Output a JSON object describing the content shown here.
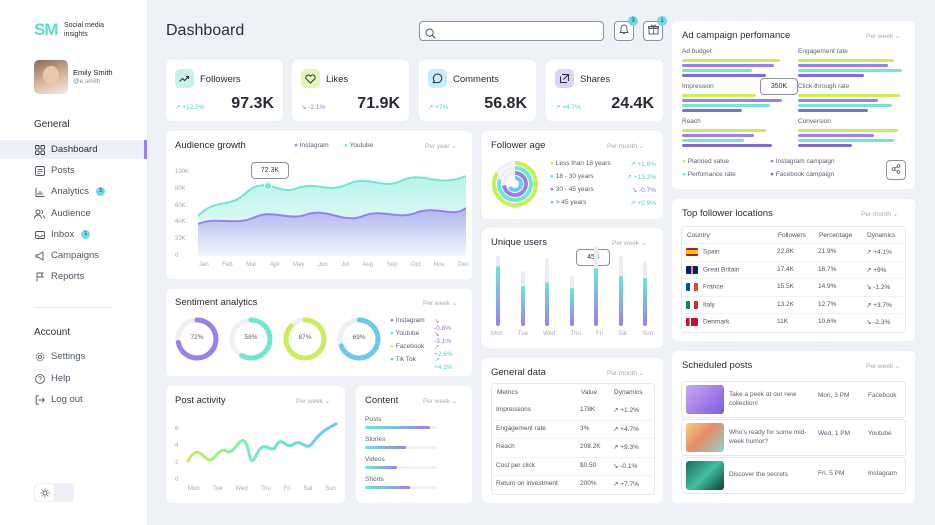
{
  "brand": {
    "mark": "SM",
    "name": "Social media insights"
  },
  "user": {
    "name": "Emily Smith",
    "handle": "@e.smith"
  },
  "nav": {
    "general_title": "General",
    "items": [
      {
        "label": "Dashboard",
        "icon": "grid-icon",
        "active": true
      },
      {
        "label": "Posts",
        "icon": "posts-icon"
      },
      {
        "label": "Analytics",
        "icon": "analytics-icon",
        "badge": "3"
      },
      {
        "label": "Audience",
        "icon": "audience-icon"
      },
      {
        "label": "Inbox",
        "icon": "inbox-icon",
        "badge": "1"
      },
      {
        "label": "Campaigns",
        "icon": "campaigns-icon"
      },
      {
        "label": "Reports",
        "icon": "reports-icon"
      }
    ],
    "account_title": "Account",
    "account_items": [
      {
        "label": "Settings",
        "icon": "gear-icon"
      },
      {
        "label": "Help",
        "icon": "help-icon"
      },
      {
        "label": "Log out",
        "icon": "logout-icon"
      }
    ]
  },
  "header": {
    "title": "Dashboard",
    "search_placeholder": "",
    "notif_badge": "3",
    "gift_badge": "1"
  },
  "stats": [
    {
      "label": "Followers",
      "value": "97.3K",
      "change": "+12.5%",
      "dir": "up",
      "color": "#c7f2e8",
      "icon": "followers-icon"
    },
    {
      "label": "Likes",
      "value": "71.9K",
      "change": "-2.1%",
      "dir": "down",
      "color": "#e5f5b9",
      "icon": "heart-icon"
    },
    {
      "label": "Comments",
      "value": "56.8K",
      "change": "+7%",
      "dir": "up",
      "color": "#c6ecf7",
      "icon": "comment-icon"
    },
    {
      "label": "Shares",
      "value": "24.4K",
      "change": "+4.7%",
      "dir": "up",
      "color": "#dcd4fb",
      "icon": "share-icon"
    }
  ],
  "audience": {
    "title": "Audience growth",
    "period": "Per year",
    "legend": [
      "Instagram",
      "Youtube"
    ],
    "tooltip": "72.3K",
    "yticks": [
      "100K",
      "80K",
      "60K",
      "40K",
      "20K",
      "0"
    ],
    "months": [
      "Jan",
      "Feb",
      "Mar",
      "Apr",
      "May",
      "Jun",
      "Jul",
      "Aug",
      "Sep",
      "Oct",
      "Nov",
      "Dec"
    ]
  },
  "sentiment": {
    "title": "Sentiment analytics",
    "period": "Per week",
    "rings": [
      {
        "value": "72%",
        "pct": 72,
        "color": "#9a7ff0"
      },
      {
        "value": "58%",
        "pct": 58,
        "color": "#6ee7d3"
      },
      {
        "value": "87%",
        "pct": 87,
        "color": "#c7ef5a"
      },
      {
        "value": "69%",
        "pct": 69,
        "color": "#6cc9ee"
      }
    ],
    "legend": [
      {
        "label": "Instagram",
        "change": "-0.8%",
        "dir": "down",
        "color": "#9a7ff0"
      },
      {
        "label": "Youtube",
        "change": "-3.1%",
        "dir": "down",
        "color": "#6ee7d3"
      },
      {
        "label": "Facebook",
        "change": "+2.6%",
        "dir": "up",
        "color": "#c7ef5a"
      },
      {
        "label": "Tik Tok",
        "change": "+4.3%",
        "dir": "up",
        "color": "#6cc9ee"
      }
    ]
  },
  "post_activity": {
    "title": "Post activity",
    "period": "Per week",
    "yticks": [
      "6",
      "4",
      "2",
      "0"
    ],
    "days": [
      "Mon",
      "Tue",
      "Wed",
      "Thu",
      "Fri",
      "Sat",
      "Sun"
    ]
  },
  "content": {
    "title": "Content",
    "period": "Per week",
    "items": [
      {
        "label": "Posts",
        "pct": 0.9
      },
      {
        "label": "Stories",
        "pct": 0.57
      },
      {
        "label": "Videos",
        "pct": 0.44
      },
      {
        "label": "Shorts",
        "pct": 0.62
      }
    ]
  },
  "follower_age": {
    "title": "Follower age",
    "period": "Per month",
    "rows": [
      {
        "label": "Less than 18 years",
        "change": "+1.6%",
        "dir": "up",
        "color": "#c7ef5a"
      },
      {
        "label": "18 - 30 years",
        "change": "+13.2%",
        "dir": "up",
        "color": "#6ee7d3"
      },
      {
        "label": "30 - 45 years",
        "change": "-0.7%",
        "dir": "down",
        "color": "#9a7ff0"
      },
      {
        "label": "> 45 years",
        "change": "+0.9%",
        "dir": "up",
        "color": "#6cc9ee"
      }
    ]
  },
  "unique_users": {
    "title": "Unique users",
    "period": "Per week",
    "tooltip": "458",
    "days": [
      "Mon",
      "Tue",
      "Wed",
      "Thu",
      "Fri",
      "Sat",
      "Sun"
    ]
  },
  "general_data": {
    "title": "General data",
    "period": "Per month",
    "headers": [
      "Metrics",
      "Value",
      "Dynamics"
    ],
    "rows": [
      {
        "metric": "Impressions",
        "value": "178K",
        "change": "+1.2%",
        "dir": "up"
      },
      {
        "metric": "Engagement rate",
        "value": "3%",
        "change": "+4.7%",
        "dir": "up"
      },
      {
        "metric": "Reach",
        "value": "208.2K",
        "change": "+9.3%",
        "dir": "up"
      },
      {
        "metric": "Cost per click",
        "value": "$0.50",
        "change": "-0.1%",
        "dir": "down"
      },
      {
        "metric": "Return on investment",
        "value": "200%",
        "change": "+7.7%",
        "dir": "up"
      }
    ]
  },
  "ad_campaign": {
    "title": "Ad campaign perfomance",
    "period": "Per week",
    "metrics": [
      "Ad budget",
      "Engagement rate",
      "Impression",
      "Click-through rate",
      "Reach",
      "Conversion"
    ],
    "tooltip": "350K",
    "legend": [
      "Planned value",
      "Instagram campaign",
      "Perfomance rate",
      "Facebook campaign"
    ]
  },
  "locations": {
    "title": "Top follower locations",
    "period": "Per month",
    "headers": [
      "Country",
      "Followers",
      "Percentage",
      "Dynamics"
    ],
    "rows": [
      {
        "country": "Spain",
        "followers": "22.8K",
        "pct": "21.9%",
        "change": "+4.1%",
        "dir": "up"
      },
      {
        "country": "Great Britain",
        "followers": "17.4K",
        "pct": "16.7%",
        "change": "+9%",
        "dir": "up"
      },
      {
        "country": "France",
        "followers": "15.5K",
        "pct": "14.9%",
        "change": "-1.2%",
        "dir": "down"
      },
      {
        "country": "Italy",
        "followers": "13.2K",
        "pct": "12.7%",
        "change": "+3.7%",
        "dir": "up"
      },
      {
        "country": "Denmark",
        "followers": "11K",
        "pct": "10.6%",
        "change": "-2.3%",
        "dir": "down"
      }
    ]
  },
  "scheduled": {
    "title": "Scheduled posts",
    "period": "Per week",
    "rows": [
      {
        "text": "Take a peek at our new collection!",
        "date": "Mon, 3 PM",
        "platform": "Facebook"
      },
      {
        "text": "Who's ready for some mid-week humor?",
        "date": "Wed, 1 PM",
        "platform": "Youtube"
      },
      {
        "text": "Discover the secrets",
        "date": "Fri, 5 PM",
        "platform": "Instagram"
      }
    ]
  }
}
